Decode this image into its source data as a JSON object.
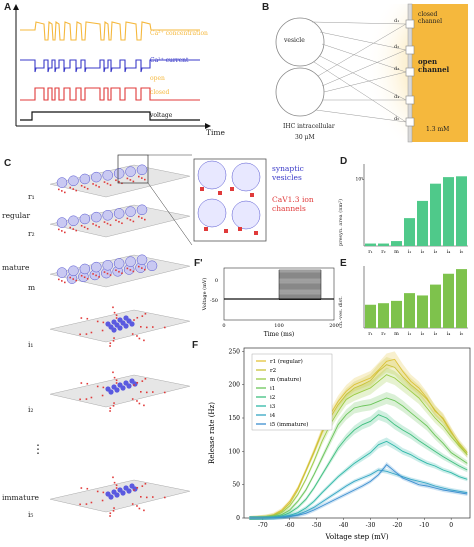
{
  "panels": {
    "A": "A",
    "B": "B",
    "C": "C",
    "D": "D",
    "E": "E",
    "Fp": "F'",
    "F": "F"
  },
  "panelA": {
    "labels": [
      "Ca²⁺ concentration",
      "Ca²⁺ current",
      "open",
      "closed",
      "voltage"
    ],
    "xlabel": "Time",
    "colors": {
      "conc": "#f5b83d",
      "current": "#3a3ac8",
      "channel": "#e03a3a",
      "voltage": "#111111"
    }
  },
  "panelB": {
    "vesicle": "vesicle",
    "d_labels": [
      "d₁",
      "d₂",
      "d₃",
      "d₄",
      "d₅"
    ],
    "closed": "closed\nchannel",
    "open": "open\nchannel",
    "ihc": "IHC intracellular",
    "conc_in": "30 μM",
    "conc_out": "1.3 mM"
  },
  "panelC": {
    "legend_vesicles": "synaptic\nvesicles",
    "legend_channels": "CaV1.3 ion\nchannels",
    "rows": [
      "r₁",
      "r₂",
      "m",
      "i₁",
      "i₂",
      "i₅"
    ],
    "groups": [
      "regular",
      "mature",
      "immature"
    ],
    "dots": "⋮"
  },
  "panelD": {
    "ylabel": "presyn. area (nm²)",
    "ytick": "10⁵",
    "categories": [
      "r₁",
      "r₂",
      "m",
      "i₁",
      "i₂",
      "i₃",
      "i₄",
      "i₅"
    ],
    "values": [
      0.3,
      0.3,
      0.6,
      3.4,
      5.5,
      7.6,
      8.4,
      8.5
    ],
    "ylim": [
      0,
      10
    ]
  },
  "panelE": {
    "ylabel": "ch.-ves. dist.",
    "categories": [
      "r₁",
      "r₂",
      "m",
      "i₁",
      "i₂",
      "i₃",
      "i₄",
      "i₅"
    ],
    "values": [
      3.0,
      3.2,
      3.5,
      4.5,
      4.2,
      5.6,
      7.0,
      7.6
    ],
    "ylim": [
      0,
      8
    ]
  },
  "panelFp": {
    "xlabel": "Time (ms)",
    "ylabel": "Voltage (mV)",
    "xticks": [
      "0",
      "100",
      "200"
    ],
    "yticks": [
      "0",
      "-50"
    ]
  },
  "chart_data": {
    "type": "line",
    "xlabel": "Voltage step (mV)",
    "ylabel": "Release rate (Hz)",
    "xlim": [
      -77,
      7
    ],
    "ylim": [
      0,
      255
    ],
    "xticks": [
      "-70",
      "-60",
      "-50",
      "-40",
      "-30",
      "-20",
      "-10",
      "0"
    ],
    "yticks": [
      "0",
      "50",
      "100",
      "150",
      "200",
      "250"
    ],
    "legend_position": "top-left",
    "x": [
      -75,
      -72,
      -69,
      -66,
      -63,
      -60,
      -57,
      -54,
      -51,
      -48,
      -45,
      -42,
      -39,
      -36,
      -33,
      -30,
      -27,
      -24,
      -21,
      -18,
      -15,
      -12,
      -9,
      -6,
      -3,
      0,
      3,
      6
    ],
    "series": [
      {
        "name": "r1 (regular)",
        "color": "#e3c23a",
        "values": [
          0,
          1,
          2,
          5,
          12,
          25,
          45,
          72,
          100,
          130,
          155,
          175,
          190,
          200,
          205,
          210,
          222,
          235,
          238,
          220,
          205,
          195,
          180,
          160,
          150,
          130,
          110,
          95
        ]
      },
      {
        "name": "r2",
        "color": "#c9c33a",
        "values": [
          0,
          1,
          2,
          4,
          10,
          22,
          42,
          70,
          98,
          128,
          150,
          170,
          185,
          195,
          200,
          206,
          220,
          230,
          226,
          212,
          200,
          190,
          178,
          162,
          148,
          128,
          112,
          98
        ]
      },
      {
        "name": "m (mature)",
        "color": "#9ccb45",
        "values": [
          0,
          0,
          1,
          3,
          8,
          18,
          35,
          58,
          85,
          115,
          140,
          160,
          178,
          185,
          190,
          195,
          205,
          215,
          210,
          200,
          190,
          180,
          165,
          150,
          138,
          122,
          108,
          95
        ]
      },
      {
        "name": "i1",
        "color": "#6bc55a",
        "values": [
          0,
          0,
          1,
          2,
          5,
          12,
          25,
          42,
          65,
          90,
          115,
          140,
          155,
          165,
          168,
          170,
          175,
          180,
          176,
          168,
          158,
          148,
          138,
          124,
          112,
          98,
          90,
          82
        ]
      },
      {
        "name": "i2",
        "color": "#3fbf7f",
        "values": [
          0,
          0,
          0,
          1,
          3,
          8,
          16,
          28,
          45,
          65,
          85,
          105,
          120,
          132,
          140,
          145,
          155,
          150,
          140,
          132,
          125,
          116,
          108,
          100,
          92,
          85,
          78,
          72
        ]
      },
      {
        "name": "i3",
        "color": "#2fb8a8",
        "values": [
          0,
          0,
          0,
          1,
          2,
          4,
          8,
          15,
          25,
          38,
          50,
          62,
          72,
          82,
          90,
          98,
          110,
          115,
          108,
          100,
          95,
          88,
          82,
          78,
          72,
          68,
          62,
          58
        ]
      },
      {
        "name": "i4",
        "color": "#34a6c4",
        "values": [
          0,
          0,
          0,
          0,
          1,
          3,
          5,
          10,
          16,
          24,
          32,
          40,
          48,
          55,
          60,
          65,
          72,
          70,
          66,
          62,
          58,
          55,
          52,
          48,
          45,
          42,
          40,
          38
        ]
      },
      {
        "name": "i5 (immature)",
        "color": "#3d8fd0",
        "values": [
          0,
          0,
          0,
          0,
          1,
          2,
          4,
          7,
          12,
          18,
          24,
          30,
          36,
          42,
          48,
          55,
          65,
          80,
          70,
          60,
          55,
          50,
          48,
          45,
          42,
          40,
          38,
          36
        ]
      }
    ]
  }
}
